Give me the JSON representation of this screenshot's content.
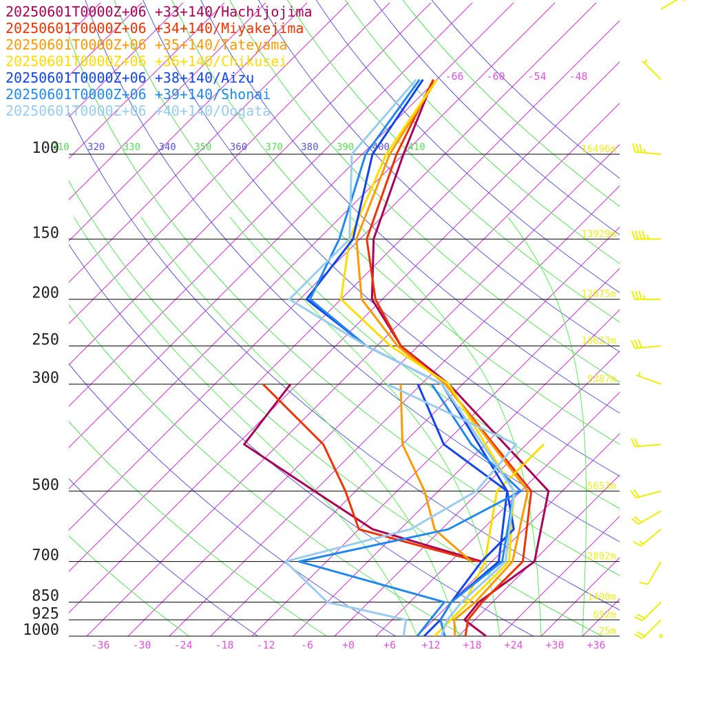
{
  "chart_data": {
    "type": "line",
    "chart_kind": "skew-T log-P sounding",
    "x_axis": {
      "unit": "degC",
      "ticks": [
        -36,
        -30,
        -24,
        -18,
        -12,
        -6,
        0,
        6,
        12,
        18,
        24,
        30,
        36
      ],
      "tick_labels": [
        "-36",
        "-30",
        "-24",
        "-18",
        "-12",
        "-6",
        "+0",
        "+6",
        "+12",
        "+18",
        "+24",
        "+30",
        "+36"
      ],
      "color": "#dd55dd"
    },
    "y_axis": {
      "unit": "hPa",
      "scale": "log",
      "levels": [
        100,
        150,
        200,
        250,
        300,
        500,
        700,
        850,
        925,
        1000
      ],
      "labels": [
        "100",
        "150",
        "200",
        "250",
        "300",
        "500",
        "700",
        "850",
        "925",
        "1000"
      ]
    },
    "heights": [
      {
        "p": 100,
        "label": "16496m"
      },
      {
        "p": 150,
        "label": "13929m"
      },
      {
        "p": 200,
        "label": "12075m"
      },
      {
        "p": 250,
        "label": "10623m"
      },
      {
        "p": 300,
        "label": "9387m"
      },
      {
        "p": 500,
        "label": "5653m"
      },
      {
        "p": 700,
        "label": "2892m"
      },
      {
        "p": 850,
        "label": "1400m"
      },
      {
        "p": 925,
        "label": "692m"
      },
      {
        "p": 1000,
        "label": "25m"
      }
    ],
    "top_temp_labels": [
      "-66",
      "-60",
      "-54",
      "-48"
    ],
    "theta_labels": [
      {
        "label": "310",
        "color": "#55dd55"
      },
      {
        "label": "320",
        "color": "#5555dd"
      },
      {
        "label": "330",
        "color": "#55dd55"
      },
      {
        "label": "340",
        "color": "#5555dd"
      },
      {
        "label": "350",
        "color": "#55dd55"
      },
      {
        "label": "360",
        "color": "#5555dd"
      },
      {
        "label": "370",
        "color": "#55dd55"
      },
      {
        "label": "380",
        "color": "#5555dd"
      },
      {
        "label": "390",
        "color": "#55dd55"
      },
      {
        "label": "400",
        "color": "#5555dd"
      },
      {
        "label": "410",
        "color": "#55dd55"
      }
    ],
    "series": [
      {
        "name": "20250601T0000Z+06 +33+140/Hachijojima",
        "color": "#aa0055",
        "temperature": [
          [
            1000,
            20.0
          ],
          [
            925,
            14.5
          ],
          [
            850,
            14.0
          ],
          [
            700,
            16.2
          ],
          [
            500,
            8.0
          ],
          [
            300,
            -22.0
          ],
          [
            250,
            -34.5
          ],
          [
            200,
            -45.5
          ],
          [
            150,
            -54.0
          ],
          [
            100,
            -62.0
          ],
          [
            70,
            -68.5
          ]
        ],
        "dewpoint": [
          [
            700,
            8.5
          ],
          [
            600,
            -12.0
          ],
          [
            500,
            -26.0
          ],
          [
            400,
            -43.0
          ],
          [
            300,
            -45.0
          ]
        ]
      },
      {
        "name": "20250601T0000Z+06 +34+140/Miyakejima",
        "color": "#ee3300",
        "temperature": [
          [
            1000,
            17.0
          ],
          [
            925,
            15.0
          ],
          [
            850,
            14.5
          ],
          [
            700,
            14.5
          ],
          [
            500,
            5.5
          ],
          [
            300,
            -22.5
          ],
          [
            250,
            -34.5
          ],
          [
            200,
            -45.0
          ],
          [
            150,
            -55.0
          ],
          [
            100,
            -63.0
          ],
          [
            70,
            -68.5
          ]
        ],
        "dewpoint": [
          [
            700,
            8.0
          ],
          [
            600,
            -14.0
          ],
          [
            500,
            -21.5
          ],
          [
            400,
            -31.5
          ],
          [
            300,
            -49.0
          ]
        ]
      },
      {
        "name": "20250601T0000Z+06 +35+140/Tateyama",
        "color": "#ff9900",
        "temperature": [
          [
            1000,
            15.5
          ],
          [
            925,
            13.0
          ],
          [
            850,
            13.5
          ],
          [
            700,
            13.0
          ],
          [
            500,
            5.0
          ],
          [
            300,
            -22.5
          ],
          [
            250,
            -35.0
          ],
          [
            200,
            -47.0
          ],
          [
            150,
            -56.5
          ],
          [
            100,
            -64.0
          ],
          [
            70,
            -68.0
          ]
        ],
        "dewpoint": [
          [
            700,
            7.0
          ],
          [
            600,
            -3.0
          ],
          [
            500,
            -10.0
          ],
          [
            400,
            -20.0
          ],
          [
            300,
            -29.0
          ]
        ]
      },
      {
        "name": "20250601T0000Z+06 +36+140/Chikusei",
        "color": "#ffdd00",
        "temperature": [
          [
            1000,
            12.5
          ],
          [
            925,
            12.5
          ],
          [
            850,
            12.5
          ],
          [
            700,
            12.5
          ],
          [
            500,
            3.0
          ],
          [
            300,
            -22.0
          ],
          [
            250,
            -36.0
          ],
          [
            200,
            -50.0
          ],
          [
            150,
            -57.5
          ],
          [
            100,
            -64.5
          ],
          [
            70,
            -68.0
          ]
        ],
        "dewpoint": [
          [
            850,
            12.0
          ],
          [
            700,
            9.0
          ],
          [
            500,
            0.5
          ],
          [
            400,
            0.5
          ]
        ]
      },
      {
        "name": "20250601T0000Z+06 +38+140/Aizu",
        "color": "#1144ee",
        "temperature": [
          [
            1000,
            11.0
          ],
          [
            925,
            11.0
          ],
          [
            850,
            10.0
          ],
          [
            700,
            11.0
          ],
          [
            500,
            2.0
          ],
          [
            300,
            -23.0
          ],
          [
            250,
            -39.5
          ],
          [
            200,
            -55.0
          ],
          [
            150,
            -57.0
          ],
          [
            100,
            -66.5
          ],
          [
            70,
            -70.0
          ]
        ],
        "dewpoint": [
          [
            850,
            10.0
          ],
          [
            700,
            8.5
          ],
          [
            600,
            8.5
          ],
          [
            500,
            2.0
          ],
          [
            400,
            -14.0
          ],
          [
            300,
            -26.5
          ]
        ]
      },
      {
        "name": "20250601T0000Z+06 +39+140/Shonai",
        "color": "#2288ee",
        "temperature": [
          [
            1000,
            14.0
          ],
          [
            925,
            11.0
          ],
          [
            850,
            10.0
          ],
          [
            700,
            11.5
          ],
          [
            500,
            3.0
          ],
          [
            300,
            -23.0
          ],
          [
            250,
            -39.5
          ],
          [
            200,
            -54.5
          ],
          [
            150,
            -59.0
          ],
          [
            100,
            -67.5
          ],
          [
            70,
            -70.5
          ]
        ],
        "dewpoint": [
          [
            1000,
            10.0
          ],
          [
            925,
            9.5
          ],
          [
            850,
            9.0
          ],
          [
            700,
            -18.0
          ],
          [
            600,
            -1.0
          ],
          [
            500,
            4.0
          ],
          [
            400,
            -10.0
          ],
          [
            300,
            -24.5
          ]
        ]
      },
      {
        "name": "20250601T0000Z+06 +40+140/Oogata",
        "color": "#99ccee",
        "temperature": [
          [
            1000,
            13.5
          ],
          [
            925,
            12.0
          ],
          [
            850,
            11.5
          ],
          [
            700,
            12.0
          ],
          [
            500,
            3.0
          ],
          [
            300,
            -23.0
          ],
          [
            250,
            -39.5
          ],
          [
            200,
            -57.5
          ],
          [
            150,
            -57.5
          ],
          [
            100,
            -69.5
          ],
          [
            70,
            -71.0
          ]
        ],
        "dewpoint": [
          [
            1000,
            8.0
          ],
          [
            925,
            6.0
          ],
          [
            850,
            -8.0
          ],
          [
            700,
            -20.0
          ],
          [
            600,
            -6.5
          ],
          [
            500,
            -2.5
          ],
          [
            400,
            -3.5
          ],
          [
            300,
            -31.0
          ]
        ]
      }
    ],
    "wind_barbs": {
      "color": "#eeee00",
      "levels": [
        {
          "p": 1000,
          "speed_kt": 0,
          "direction_deg": 0
        },
        {
          "p": 925,
          "speed_kt": 20,
          "direction_deg": 225
        },
        {
          "p": 850,
          "speed_kt": 20,
          "direction_deg": 225
        },
        {
          "p": 700,
          "speed_kt": 10,
          "direction_deg": 210
        },
        {
          "p": 600,
          "speed_kt": 15,
          "direction_deg": 230
        },
        {
          "p": 550,
          "speed_kt": 20,
          "direction_deg": 240
        },
        {
          "p": 500,
          "speed_kt": 20,
          "direction_deg": 255
        },
        {
          "p": 400,
          "speed_kt": 20,
          "direction_deg": 265
        },
        {
          "p": 300,
          "speed_kt": 5,
          "direction_deg": 290
        },
        {
          "p": 250,
          "speed_kt": 30,
          "direction_deg": 265
        },
        {
          "p": 200,
          "speed_kt": 35,
          "direction_deg": 270
        },
        {
          "p": 150,
          "speed_kt": 45,
          "direction_deg": 270
        },
        {
          "p": 100,
          "speed_kt": 35,
          "direction_deg": 275
        },
        {
          "p": 70,
          "speed_kt": 5,
          "direction_deg": 315
        },
        {
          "p": 50,
          "speed_kt": 5,
          "direction_deg": 60
        }
      ]
    }
  }
}
